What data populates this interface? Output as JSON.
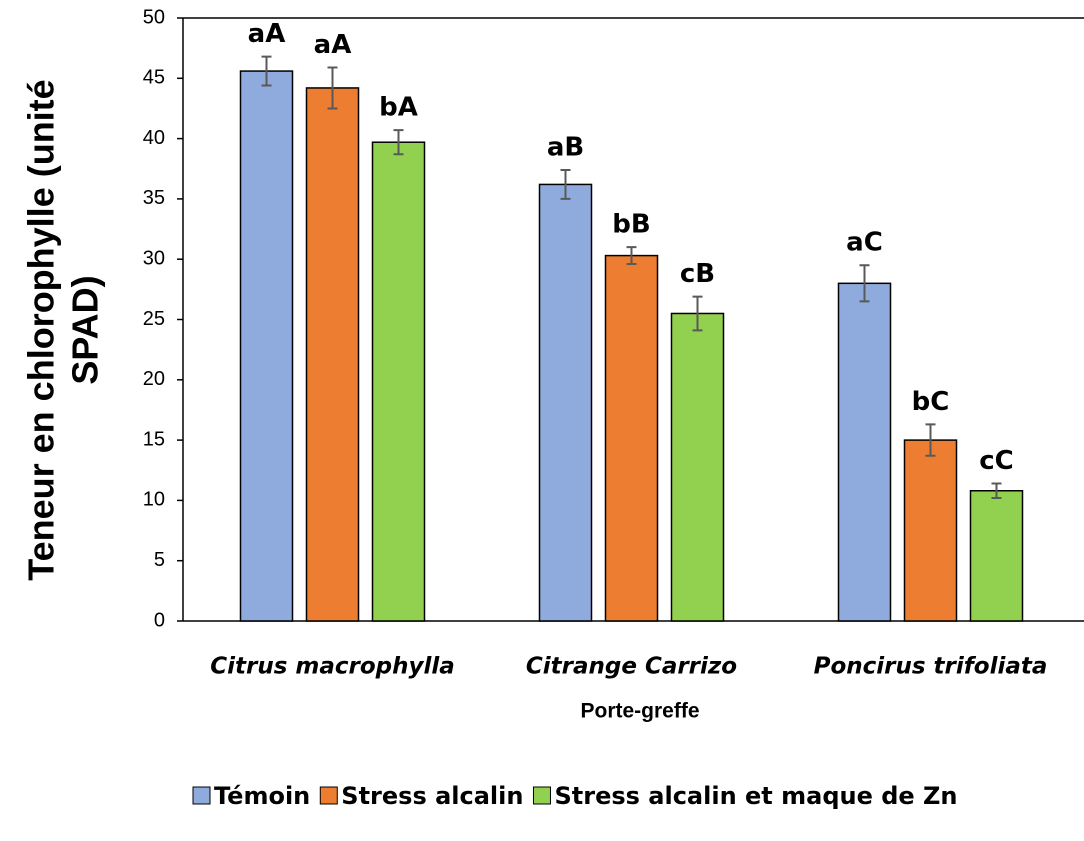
{
  "chart_data": {
    "type": "bar",
    "categories": [
      "Citrus macrophylla",
      "Citrange Carrizo",
      "Poncirus trifoliata"
    ],
    "xlabel": "Porte-greffe",
    "ylabel": [
      "Teneur en chlorophylle (unité",
      "SPAD)"
    ],
    "series": [
      {
        "name": "Témoin",
        "color": "#8faadc",
        "values": [
          45.6,
          36.2,
          28.0
        ],
        "errors": [
          1.2,
          1.2,
          1.5
        ],
        "letters": [
          "aA",
          "aB",
          "aC"
        ]
      },
      {
        "name": "Stress alcalin",
        "color": "#ed7d31",
        "values": [
          44.2,
          30.3,
          15.0
        ],
        "errors": [
          1.7,
          0.7,
          1.3
        ],
        "letters": [
          "aA",
          "bB",
          "bC"
        ]
      },
      {
        "name": "Stress alcalin et maque de Zn",
        "color": "#92d050",
        "values": [
          39.7,
          25.5,
          10.8
        ],
        "errors": [
          1.0,
          1.4,
          0.6
        ],
        "letters": [
          "bA",
          "cB",
          "cC"
        ]
      }
    ],
    "ylim": [
      0,
      50
    ],
    "yticks": [
      0,
      5,
      10,
      15,
      20,
      25,
      30,
      35,
      40,
      45,
      50
    ],
    "legend": "bottom"
  }
}
